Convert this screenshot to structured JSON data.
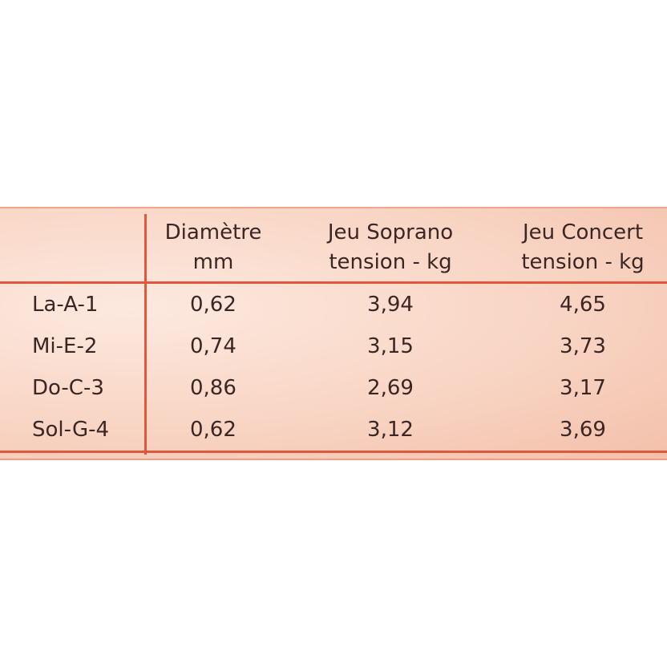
{
  "table": {
    "header": [
      [
        "Diamètre",
        "mm"
      ],
      [
        "Jeu Soprano",
        "tension - kg"
      ],
      [
        "Jeu Concert",
        "tension - kg"
      ]
    ],
    "rows": [
      [
        "La-A-1",
        "0,62",
        "3,94",
        "4,65"
      ],
      [
        "Mi-E-2",
        "0,74",
        "3,15",
        "3,73"
      ],
      [
        "Do-C-3",
        "0,86",
        "2,69",
        "3,17"
      ],
      [
        "Sol-G-4",
        "0,62",
        "3,12",
        "3,69"
      ]
    ]
  }
}
